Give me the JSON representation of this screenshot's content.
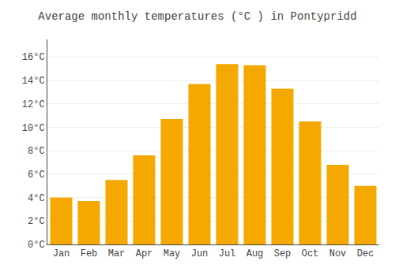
{
  "chart_data": {
    "type": "bar",
    "title": "Average monthly temperatures (°C ) in Pontypridd",
    "categories": [
      "Jan",
      "Feb",
      "Mar",
      "Apr",
      "May",
      "Jun",
      "Jul",
      "Aug",
      "Sep",
      "Oct",
      "Nov",
      "Dec"
    ],
    "values": [
      4.0,
      3.7,
      5.5,
      7.6,
      10.7,
      13.7,
      15.4,
      15.3,
      13.3,
      10.5,
      6.8,
      5.0
    ],
    "color": "#F5A800",
    "ylim": [
      0,
      17.5
    ],
    "yticks": [
      {
        "value": 0,
        "label": "0°C"
      },
      {
        "value": 2,
        "label": "2°C"
      },
      {
        "value": 4,
        "label": "4°C"
      },
      {
        "value": 6,
        "label": "6°C"
      },
      {
        "value": 8,
        "label": "8°C"
      },
      {
        "value": 10,
        "label": "10°C"
      },
      {
        "value": 12,
        "label": "12°C"
      },
      {
        "value": 14,
        "label": "14°C"
      },
      {
        "value": 16,
        "label": "16°C"
      }
    ],
    "grid": true
  }
}
